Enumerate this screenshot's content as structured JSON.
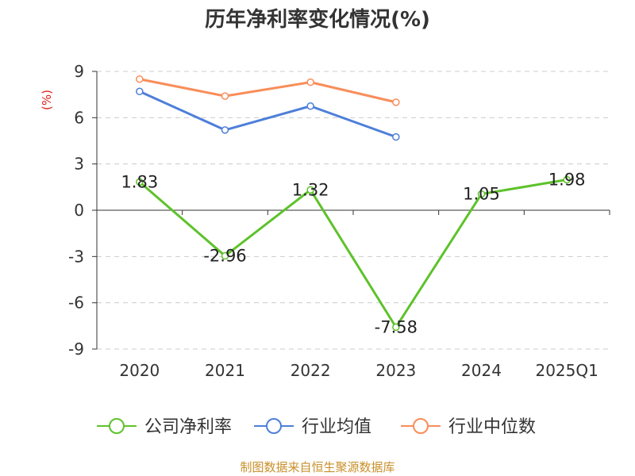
{
  "chart_data": {
    "type": "line",
    "title": "历年净利率变化情况(%)",
    "ylabel": "(%)",
    "categories": [
      "2020",
      "2021",
      "2022",
      "2023",
      "2024",
      "2025Q1"
    ],
    "yticks": [
      9,
      6,
      3,
      0,
      -3,
      -6,
      -9
    ],
    "ylim": [
      -9,
      9
    ],
    "grid": true,
    "legend_position": "bottom",
    "series": [
      {
        "name": "公司净利率",
        "color": "#5ec22b",
        "values": [
          1.83,
          -2.96,
          1.32,
          -7.58,
          1.05,
          1.98
        ],
        "labels": [
          "1.83",
          "-2.96",
          "1.32",
          "-7.58",
          "1.05",
          "1.98"
        ]
      },
      {
        "name": "行业均值",
        "color": "#4e7fd9",
        "values": [
          7.7,
          5.2,
          6.75,
          4.75,
          null,
          null
        ]
      },
      {
        "name": "行业中位数",
        "color": "#f98d59",
        "values": [
          8.5,
          7.4,
          8.3,
          7.0,
          null,
          null
        ]
      }
    ]
  },
  "source": "制图数据来自恒生聚源数据库"
}
